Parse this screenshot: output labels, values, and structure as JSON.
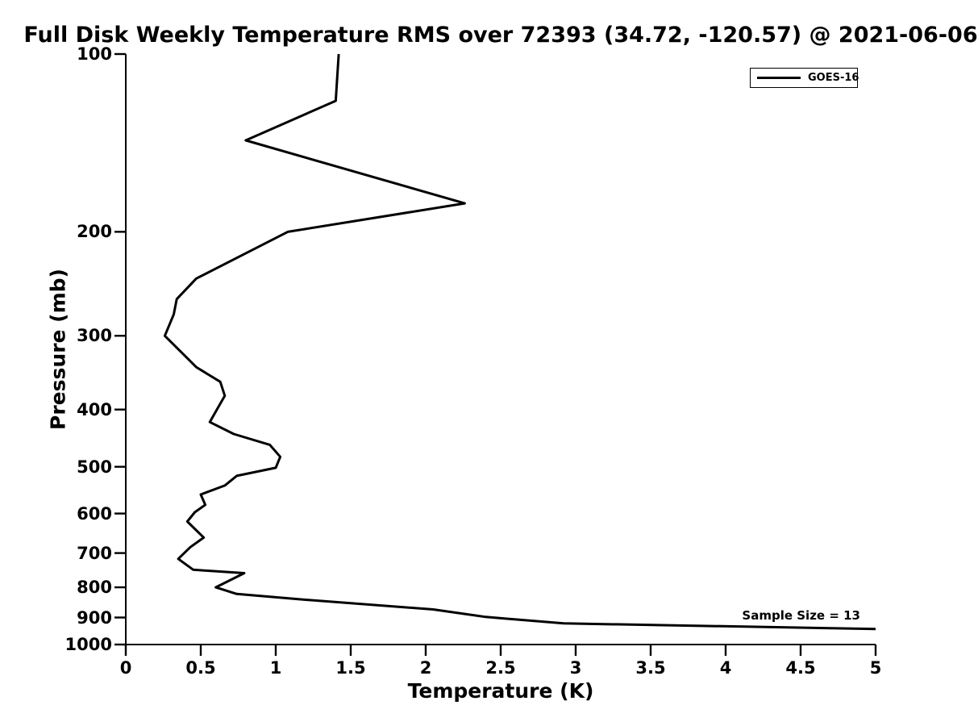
{
  "figure": {
    "title": "Full Disk Weekly Temperature RMS over 72393 (34.72, -120.57) @ 2021-06-06",
    "annotation": "Sample Size = 13",
    "colors": {
      "line": "#000000",
      "text": "#000000",
      "background": "#ffffff"
    }
  },
  "legend": {
    "position": "upper right",
    "entries": [
      {
        "label": "GOES-16",
        "color": "#000000"
      }
    ]
  },
  "chart_data": {
    "type": "line",
    "title": "Full Disk Weekly Temperature RMS over 72393 (34.72, -120.57) @ 2021-06-06",
    "xlabel": "Temperature (K)",
    "ylabel": "Pressure (mb)",
    "xlim": [
      0,
      5
    ],
    "ylim": [
      100,
      1000
    ],
    "x_scale": "linear",
    "y_scale": "log",
    "y_axis_direction": "increasing-downward",
    "grid": false,
    "spines": [
      "left",
      "bottom"
    ],
    "x_ticks": [
      0,
      0.5,
      1,
      1.5,
      2,
      2.5,
      3,
      3.5,
      4,
      4.5,
      5
    ],
    "x_tick_labels": [
      "0",
      "0.5",
      "1",
      "1.5",
      "2",
      "2.5",
      "3",
      "3.5",
      "4",
      "4.5",
      "5"
    ],
    "y_ticks": [
      100,
      200,
      300,
      400,
      500,
      600,
      700,
      800,
      900,
      1000
    ],
    "y_tick_labels": [
      "100",
      "200",
      "300",
      "400",
      "500",
      "600",
      "700",
      "800",
      "900",
      "1000"
    ],
    "legend_position": "upper right",
    "series": [
      {
        "name": "GOES-16",
        "color": "#000000",
        "line_width": 3,
        "point_format": [
          "temperature_K",
          "pressure_mb"
        ],
        "points": [
          [
            1.42,
            100
          ],
          [
            1.4,
            120
          ],
          [
            0.8,
            140
          ],
          [
            2.26,
            179
          ],
          [
            1.08,
            200
          ],
          [
            0.47,
            240
          ],
          [
            0.34,
            260
          ],
          [
            0.32,
            276
          ],
          [
            0.26,
            300
          ],
          [
            0.47,
            339
          ],
          [
            0.63,
            359
          ],
          [
            0.66,
            379
          ],
          [
            0.56,
            420
          ],
          [
            0.72,
            440
          ],
          [
            0.96,
            459
          ],
          [
            1.03,
            481
          ],
          [
            1.0,
            502
          ],
          [
            0.74,
            518
          ],
          [
            0.66,
            538
          ],
          [
            0.5,
            557
          ],
          [
            0.53,
            580
          ],
          [
            0.46,
            597
          ],
          [
            0.41,
            619
          ],
          [
            0.52,
            659
          ],
          [
            0.43,
            684
          ],
          [
            0.35,
            716
          ],
          [
            0.45,
            747
          ],
          [
            0.79,
            757
          ],
          [
            0.6,
            800
          ],
          [
            0.74,
            821
          ],
          [
            1.15,
            838
          ],
          [
            2.05,
            872
          ],
          [
            2.4,
            898
          ],
          [
            2.92,
            921
          ],
          [
            5.0,
            941
          ]
        ]
      }
    ],
    "annotations": [
      {
        "text": "Sample Size = 13",
        "anchor": "right",
        "temperature_K": 4.9,
        "pressure_mb": 912
      }
    ]
  }
}
